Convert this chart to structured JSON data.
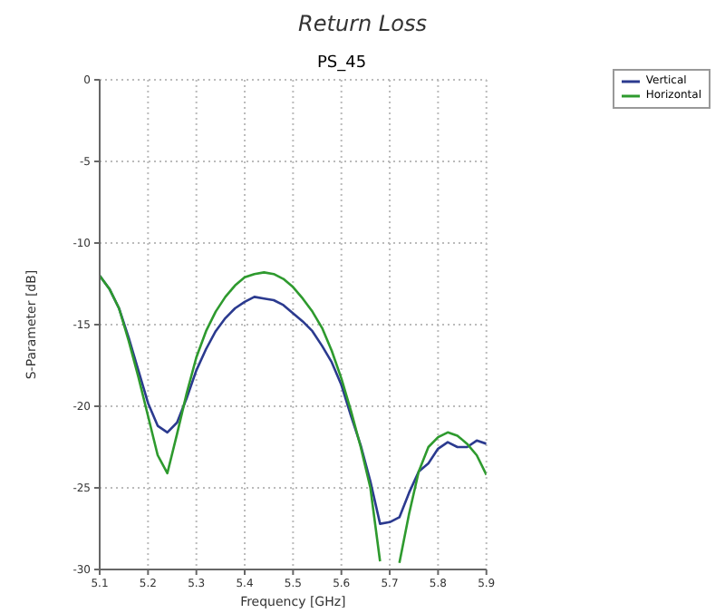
{
  "chart_data": {
    "type": "line",
    "title": "Return Loss",
    "subtitle": "PS_45",
    "xlabel": "Frequency [GHz]",
    "ylabel": "S-Parameter [dB]",
    "x": [
      5.1,
      5.12,
      5.14,
      5.16,
      5.18,
      5.2,
      5.22,
      5.24,
      5.26,
      5.28,
      5.3,
      5.32,
      5.34,
      5.36,
      5.38,
      5.4,
      5.42,
      5.44,
      5.46,
      5.48,
      5.5,
      5.52,
      5.54,
      5.56,
      5.58,
      5.6,
      5.62,
      5.64,
      5.66,
      5.68,
      5.7,
      5.72,
      5.74,
      5.76,
      5.78,
      5.8,
      5.82,
      5.84,
      5.86,
      5.88,
      5.9
    ],
    "series": [
      {
        "name": "Vertical",
        "color": "#2b3a8f",
        "values": [
          -12,
          -12.8,
          -14,
          -15.8,
          -17.8,
          -19.8,
          -21.2,
          -21.6,
          -21,
          -19.5,
          -17.8,
          -16.5,
          -15.4,
          -14.6,
          -14,
          -13.6,
          -13.3,
          -13.4,
          -13.5,
          -13.8,
          -14.3,
          -14.8,
          -15.4,
          -16.3,
          -17.3,
          -18.7,
          -20.6,
          -22.4,
          -24.6,
          -27.2,
          -27.1,
          -26.8,
          -25.3,
          -24,
          -23.5,
          -22.6,
          -22.2,
          -22.5,
          -22.5,
          -22.1,
          -22.3
        ]
      },
      {
        "name": "Horizontal",
        "color": "#2e9a2e",
        "values": [
          -12,
          -12.8,
          -14,
          -16,
          -18.2,
          -20.6,
          -23,
          -24.1,
          -21.7,
          -19.2,
          -17,
          -15.4,
          -14.2,
          -13.3,
          -12.6,
          -12.1,
          -11.9,
          -11.8,
          -11.9,
          -12.2,
          -12.7,
          -13.4,
          -14.2,
          -15.2,
          -16.6,
          -18.3,
          -20.3,
          -22.5,
          -25,
          -29.5,
          null,
          -29.6,
          -26.6,
          -24,
          -22.5,
          -21.9,
          -21.6,
          -21.8,
          -22.3,
          -23,
          -24.2
        ]
      }
    ],
    "xlim": [
      5.1,
      5.9
    ],
    "xticks": [
      5.1,
      5.2,
      5.3,
      5.4,
      5.5,
      5.6,
      5.7,
      5.8,
      5.9
    ],
    "ylim": [
      -30,
      0
    ],
    "yticks": [
      -30,
      -25,
      -20,
      -15,
      -10,
      -5,
      0
    ],
    "grid": true,
    "legend": "top right",
    "marker": "none",
    "line_style": "solid"
  }
}
